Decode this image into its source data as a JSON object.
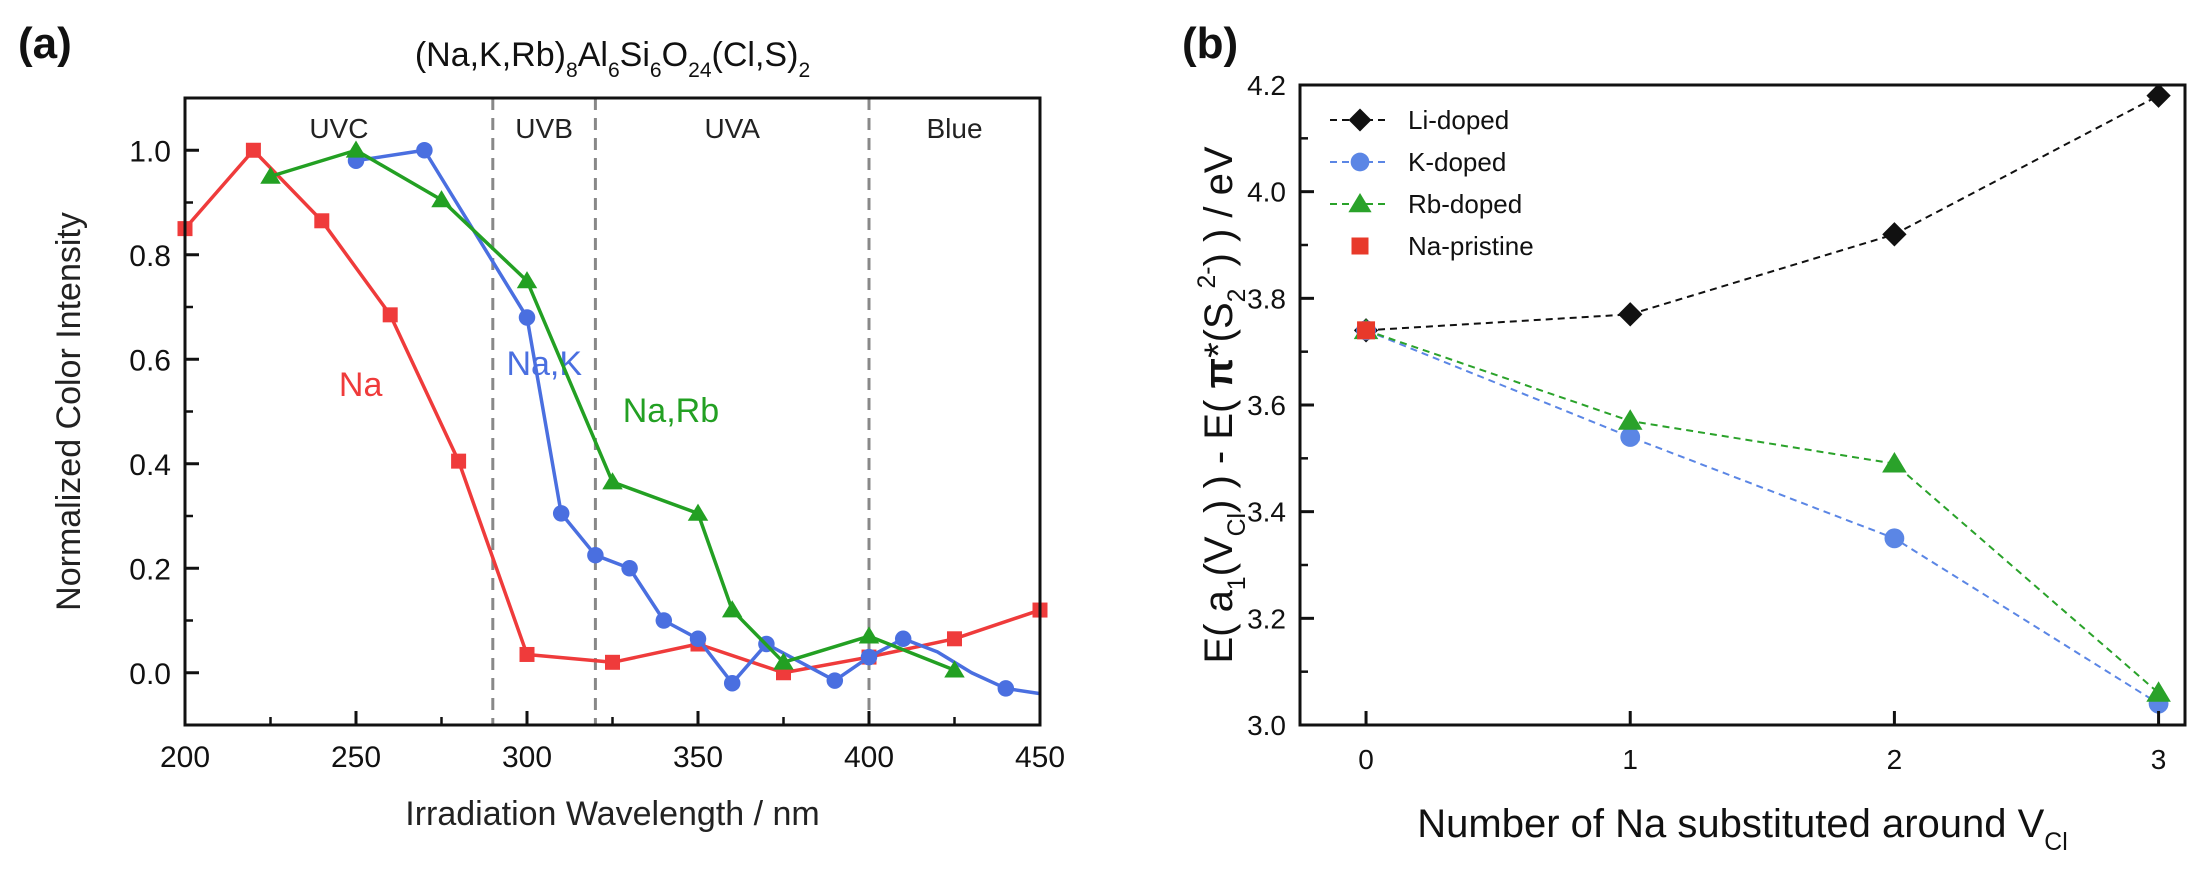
{
  "chart_data": [
    {
      "panel": "(a)",
      "type": "line",
      "title": {
        "base": "(Na,K,Rb)",
        "parts": [
          [
            "(Na,K,Rb)",
            ""
          ],
          [
            "8",
            "sub"
          ],
          [
            "Al",
            ""
          ],
          [
            "6",
            "sub"
          ],
          [
            "Si",
            ""
          ],
          [
            "6",
            "sub"
          ],
          [
            "O",
            ""
          ],
          [
            "24",
            "sub"
          ],
          [
            "(Cl,S)",
            ""
          ],
          [
            "2",
            "sub"
          ]
        ]
      },
      "xlabel": "Irradiation Wavelength / nm",
      "ylabel": "Normalized Color Intensity",
      "xlim": [
        200,
        450
      ],
      "ylim": [
        -0.1,
        1.1
      ],
      "xticks": [
        200,
        250,
        300,
        350,
        400,
        450
      ],
      "yticks": [
        0.0,
        0.2,
        0.4,
        0.6,
        0.8,
        1.0
      ],
      "xticklabels": [
        "200",
        "250",
        "300",
        "350",
        "400",
        "450"
      ],
      "yticklabels": [
        "0.0",
        "0.2",
        "0.4",
        "0.6",
        "0.8",
        "1.0"
      ],
      "regions": [
        {
          "label": "UVC",
          "from": 200,
          "to": 290
        },
        {
          "label": "UVB",
          "from": 290,
          "to": 320
        },
        {
          "label": "UVA",
          "from": 320,
          "to": 400
        },
        {
          "label": "Blue",
          "from": 400,
          "to": 450
        }
      ],
      "region_boundaries": [
        290,
        320,
        400
      ],
      "series": [
        {
          "name": "Na",
          "color": "#ef3b3b",
          "marker": "square",
          "x": [
            200,
            220,
            240,
            260,
            280,
            300,
            325,
            350,
            375,
            400,
            425,
            450
          ],
          "y": [
            0.85,
            1.0,
            0.865,
            0.685,
            0.405,
            0.035,
            0.02,
            0.055,
            0.0,
            0.03,
            0.065,
            0.12
          ],
          "label_at": [
            245,
            0.53
          ]
        },
        {
          "name": "Na,K",
          "color": "#4a6fe0",
          "marker": "circle",
          "x": [
            250,
            270,
            300,
            310,
            320,
            330,
            340,
            350,
            360,
            370,
            380,
            390,
            400,
            410,
            420,
            430,
            440,
            450
          ],
          "y": [
            0.98,
            1.0,
            0.68,
            0.305,
            0.225,
            0.2,
            0.1,
            0.065,
            -0.02,
            0.055,
            0.02,
            -0.015,
            0.03,
            0.065,
            0.04,
            0.0,
            -0.03,
            -0.04
          ],
          "marked": [
            true,
            true,
            true,
            true,
            true,
            true,
            true,
            true,
            true,
            true,
            false,
            true,
            true,
            true,
            false,
            false,
            true,
            false
          ],
          "label_at": [
            294,
            0.57
          ]
        },
        {
          "name": "Na,Rb",
          "color": "#23a023",
          "marker": "triangle",
          "x": [
            225,
            250,
            275,
            300,
            325,
            350,
            360,
            375,
            400,
            425
          ],
          "y": [
            0.95,
            1.0,
            0.905,
            0.75,
            0.365,
            0.305,
            0.12,
            0.02,
            0.07,
            0.005
          ],
          "label_at": [
            328,
            0.48
          ]
        }
      ]
    },
    {
      "panel": "(b)",
      "type": "line",
      "ylabel": {
        "parts": [
          [
            "E( a",
            ""
          ],
          [
            "1",
            "sub"
          ],
          [
            "(V",
            ""
          ],
          [
            "Cl",
            "sub"
          ],
          [
            ") ) - E( ",
            ""
          ],
          [
            "π",
            "bold"
          ],
          [
            "*(S",
            ""
          ],
          [
            "2",
            "sub"
          ],
          [
            "2-",
            "sup"
          ],
          [
            ") ) / eV",
            ""
          ]
        ]
      },
      "xlabel": {
        "parts": [
          [
            "Number of Na substituted around V",
            ""
          ],
          [
            "Cl",
            "sub"
          ]
        ]
      },
      "xlim": [
        -0.25,
        3.1
      ],
      "ylim": [
        3.0,
        4.2
      ],
      "xticks": [
        0,
        1,
        2,
        3
      ],
      "yticks": [
        3.0,
        3.2,
        3.4,
        3.6,
        3.8,
        4.0,
        4.2
      ],
      "xticklabels": [
        "0",
        "1",
        "2",
        "3"
      ],
      "yticklabels": [
        "3.0",
        "3.2",
        "3.4",
        "3.6",
        "3.8",
        "4.0",
        "4.2"
      ],
      "legend_position": "top-left",
      "series": [
        {
          "name": "Li-doped",
          "color": "#111111",
          "marker": "diamond",
          "x": [
            0,
            1,
            2,
            3
          ],
          "y": [
            3.74,
            3.77,
            3.92,
            4.18
          ]
        },
        {
          "name": "K-doped",
          "color": "#5b86e5",
          "marker": "circle",
          "x": [
            0,
            1,
            2,
            3
          ],
          "y": [
            3.74,
            3.54,
            3.35,
            3.04
          ]
        },
        {
          "name": "Rb-doped",
          "color": "#2aa22a",
          "marker": "triangle",
          "x": [
            0,
            1,
            2,
            3
          ],
          "y": [
            3.74,
            3.57,
            3.49,
            3.06
          ]
        },
        {
          "name": "Na-pristine",
          "color": "#e8392a",
          "marker": "square",
          "x": [
            0
          ],
          "y": [
            3.74
          ]
        }
      ]
    }
  ],
  "panel_labels": [
    "(a)",
    "(b)"
  ]
}
